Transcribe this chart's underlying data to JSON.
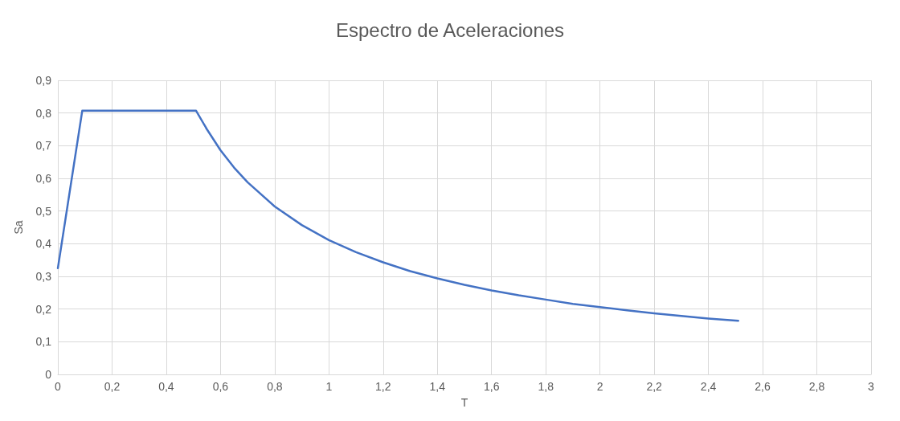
{
  "chart_data": {
    "type": "line",
    "title": "Espectro de Aceleraciones",
    "xlabel": "T",
    "ylabel": "Sa",
    "series": [
      {
        "color": "#4472c4",
        "x": [
          0,
          0.09,
          0.51,
          0.55,
          0.6,
          0.65,
          0.7,
          0.8,
          0.9,
          1,
          1.1,
          1.2,
          1.3,
          1.4,
          1.5,
          1.6,
          1.7,
          1.8,
          1.9,
          2,
          2.1,
          2.2,
          2.3,
          2.4,
          2.51
        ],
        "values": [
          0.325,
          0.807,
          0.807,
          0.75,
          0.686,
          0.633,
          0.588,
          0.514,
          0.457,
          0.411,
          0.374,
          0.343,
          0.316,
          0.294,
          0.274,
          0.257,
          0.242,
          0.229,
          0.216,
          0.206,
          0.196,
          0.187,
          0.179,
          0.171,
          0.164
        ]
      }
    ],
    "xlim": [
      0,
      3
    ],
    "xticks": [
      0,
      {
        "value": 0.2,
        "label": "0,2"
      },
      {
        "value": 0.4,
        "label": "0,4"
      },
      {
        "value": 0.6,
        "label": "0,6"
      },
      {
        "value": 0.8,
        "label": "0,8"
      },
      1,
      {
        "value": 1.2,
        "label": "1,2"
      },
      {
        "value": 1.4,
        "label": "1,4"
      },
      {
        "value": 1.6,
        "label": "1,6"
      },
      {
        "value": 1.8,
        "label": "1,8"
      },
      2,
      {
        "value": 2.2,
        "label": "2,2"
      },
      {
        "value": 2.4,
        "label": "2,4"
      },
      {
        "value": 2.6,
        "label": "2,6"
      },
      {
        "value": 2.8,
        "label": "2,8"
      },
      3
    ],
    "ylim": [
      0,
      0.9
    ],
    "yticks": [
      0,
      {
        "value": 0.1,
        "label": "0,1"
      },
      {
        "value": 0.2,
        "label": "0,2"
      },
      {
        "value": 0.3,
        "label": "0,3"
      },
      {
        "value": 0.4,
        "label": "0,4"
      },
      {
        "value": 0.5,
        "label": "0,5"
      },
      {
        "value": 0.6,
        "label": "0,6"
      },
      {
        "value": 0.7,
        "label": "0,7"
      },
      {
        "value": 0.8,
        "label": "0,8"
      },
      {
        "value": 0.9,
        "label": "0,9"
      }
    ],
    "grid": true,
    "line_style": "solid",
    "marker": "none"
  }
}
